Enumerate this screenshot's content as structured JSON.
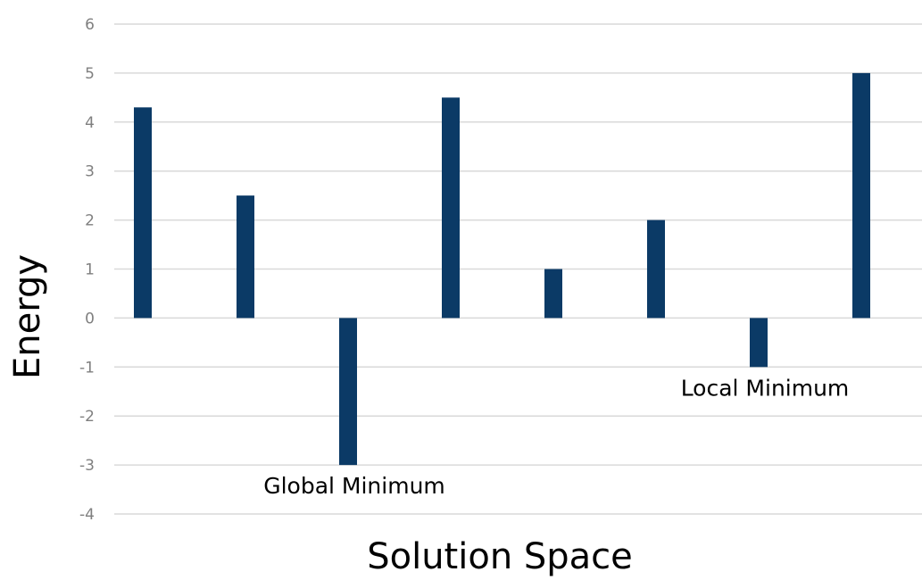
{
  "chart_data": {
    "type": "bar",
    "title": "",
    "xlabel": "Solution Space",
    "ylabel": "Energy",
    "ylim": [
      -4,
      6
    ],
    "yticks": [
      6,
      5,
      4,
      3,
      2,
      1,
      0,
      -1,
      -2,
      -3,
      -4
    ],
    "ytick_labels": [
      "6",
      "5",
      "4",
      "3",
      "2",
      "1",
      "0",
      "-1",
      "-2",
      "-3",
      "-4"
    ],
    "grid": true,
    "legend": "none",
    "bar_color": "#0b3a66",
    "values": [
      4.3,
      2.5,
      -3,
      4.5,
      1,
      2,
      -1,
      5
    ],
    "annotations": [
      {
        "text": "Global Minimum",
        "bar_index": 2
      },
      {
        "text": "Local Minimum",
        "bar_index": 6
      }
    ]
  }
}
